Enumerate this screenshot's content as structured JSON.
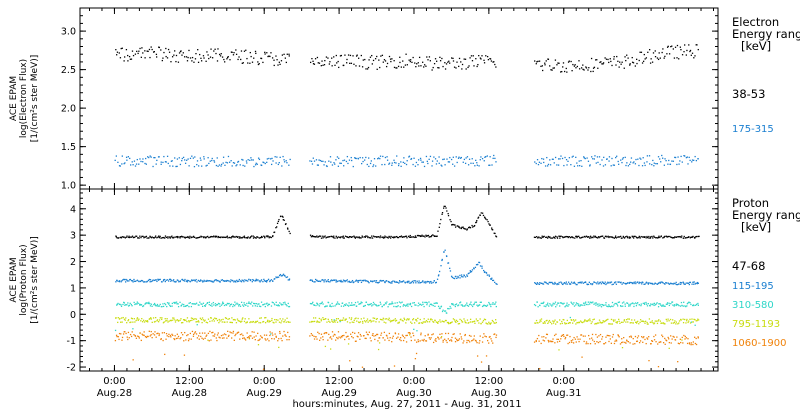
{
  "chart_data": [
    {
      "type": "scatter",
      "panel": "electron",
      "ylabel_lines": [
        "ACE EPAM",
        "log(Electron Flux)",
        "[1/(cm²s ster MeV)]"
      ],
      "ylim": [
        0.95,
        3.3
      ],
      "yticks": [
        1.0,
        1.5,
        2.0,
        2.5,
        3.0
      ],
      "ytick_labels": [
        "1.0",
        "1.5",
        "2.0",
        "2.5",
        "3.0"
      ],
      "legend_title_lines": [
        "Electron",
        "Energy ranges",
        "[keV]"
      ],
      "series": [
        {
          "name": "38-53",
          "color": "#000000",
          "segments": [
            [
              -0.25,
              0.92
            ],
            [
              1.05,
              2.3
            ],
            [
              2.55,
              3.65
            ]
          ],
          "x": [
            -0.2,
            0.0,
            0.2,
            0.4,
            0.6,
            0.8,
            1.1,
            1.3,
            1.5,
            1.7,
            1.9,
            2.1,
            2.3,
            2.6,
            2.8,
            3.0,
            3.2,
            3.4,
            3.6
          ],
          "y": [
            2.7,
            2.72,
            2.68,
            2.69,
            2.68,
            2.65,
            2.6,
            2.62,
            2.6,
            2.63,
            2.58,
            2.6,
            2.62,
            2.57,
            2.56,
            2.58,
            2.62,
            2.72,
            2.75
          ]
        },
        {
          "name": "175-315",
          "color": "#1a7fd0",
          "segments": [
            [
              -0.25,
              0.92
            ],
            [
              1.05,
              2.3
            ],
            [
              2.55,
              3.65
            ]
          ],
          "x": [
            -0.2,
            0.2,
            0.6,
            0.9,
            1.1,
            1.5,
            1.9,
            2.3,
            2.6,
            3.0,
            3.4,
            3.6
          ],
          "y": [
            1.32,
            1.32,
            1.31,
            1.32,
            1.31,
            1.32,
            1.32,
            1.33,
            1.32,
            1.32,
            1.33,
            1.32
          ]
        }
      ]
    },
    {
      "type": "scatter",
      "panel": "proton",
      "ylabel_lines": [
        "ACE EPAM",
        "log(Proton Flux)",
        "[1/(cm²s ster MeV)]"
      ],
      "ylim": [
        -2.15,
        4.75
      ],
      "yticks": [
        -2,
        -1,
        0,
        1,
        2,
        3,
        4
      ],
      "ytick_labels": [
        "-2",
        "-1",
        "0",
        "1",
        "2",
        "3",
        "4"
      ],
      "legend_title_lines": [
        "Proton",
        "Energy ranges",
        "[keV]"
      ],
      "series": [
        {
          "name": "47-68",
          "color": "#000000",
          "segments": [
            [
              -0.25,
              0.92
            ],
            [
              1.05,
              2.3
            ],
            [
              2.55,
              3.65
            ]
          ],
          "x": [
            -0.2,
            0.7,
            0.8,
            0.86,
            0.92,
            1.1,
            1.6,
            1.9,
            1.95,
            2.0,
            2.1,
            2.15,
            2.2,
            2.3,
            2.6,
            3.6
          ],
          "y": [
            2.95,
            2.95,
            2.97,
            3.8,
            3.1,
            2.95,
            2.95,
            3.0,
            4.2,
            3.4,
            3.25,
            3.4,
            3.9,
            2.95,
            2.95,
            2.95
          ]
        },
        {
          "name": "115-195",
          "color": "#1a7fd0",
          "segments": [
            [
              -0.25,
              0.92
            ],
            [
              1.05,
              2.3
            ],
            [
              2.55,
              3.65
            ]
          ],
          "x": [
            -0.2,
            0.8,
            0.87,
            0.92,
            1.1,
            1.6,
            1.9,
            1.95,
            2.0,
            2.1,
            2.18,
            2.22,
            2.3,
            2.6,
            3.6
          ],
          "y": [
            1.3,
            1.3,
            1.55,
            1.3,
            1.3,
            1.25,
            1.25,
            2.5,
            1.4,
            1.5,
            2.0,
            1.6,
            1.2,
            1.2,
            1.2
          ]
        },
        {
          "name": "310-580",
          "color": "#2ed6c8",
          "segments": [
            [
              -0.25,
              0.92
            ],
            [
              1.05,
              2.3
            ],
            [
              2.55,
              3.65
            ]
          ],
          "x": [
            -0.2,
            0.9,
            1.1,
            1.9,
            1.96,
            2.0,
            2.3,
            2.6,
            3.6
          ],
          "y": [
            0.4,
            0.4,
            0.4,
            0.4,
            0.1,
            0.4,
            0.4,
            0.4,
            0.4
          ]
        },
        {
          "name": "795-1193",
          "color": "#c8dc10",
          "segments": [
            [
              -0.25,
              0.92
            ],
            [
              1.05,
              2.3
            ],
            [
              2.55,
              3.65
            ]
          ],
          "x": [
            -0.2,
            0.9,
            1.1,
            2.3,
            2.6,
            3.6
          ],
          "y": [
            -0.2,
            -0.2,
            -0.2,
            -0.25,
            -0.25,
            -0.25
          ]
        },
        {
          "name": "1060-1900",
          "color": "#f0820a",
          "segments": [
            [
              -0.25,
              0.92
            ],
            [
              1.05,
              2.3
            ],
            [
              2.55,
              3.65
            ]
          ],
          "x": [
            -0.2,
            0.9,
            1.1,
            2.3,
            2.6,
            3.6
          ],
          "y": [
            -0.8,
            -0.8,
            -0.8,
            -0.9,
            -0.9,
            -0.95
          ]
        }
      ]
    }
  ],
  "x_axis": {
    "xlim_days_after_aug28": [
      -0.48,
      3.78
    ],
    "ticks": [
      {
        "x": -0.25,
        "time": "0:00",
        "date": "Aug.28"
      },
      {
        "x": 0.25,
        "time": "12:00",
        "date": "Aug.28"
      },
      {
        "x": 0.75,
        "time": "0:00",
        "date": "Aug.29"
      },
      {
        "x": 1.25,
        "time": "12:00",
        "date": "Aug.29"
      },
      {
        "x": 1.75,
        "time": "0:00",
        "date": "Aug.30"
      },
      {
        "x": 2.25,
        "time": "12:00",
        "date": "Aug.30"
      },
      {
        "x": 2.75,
        "time": "0:00",
        "date": "Aug.31"
      }
    ],
    "xlabel": "hours:minutes, Aug. 27, 2011 - Aug. 31, 2011"
  },
  "grid": false
}
